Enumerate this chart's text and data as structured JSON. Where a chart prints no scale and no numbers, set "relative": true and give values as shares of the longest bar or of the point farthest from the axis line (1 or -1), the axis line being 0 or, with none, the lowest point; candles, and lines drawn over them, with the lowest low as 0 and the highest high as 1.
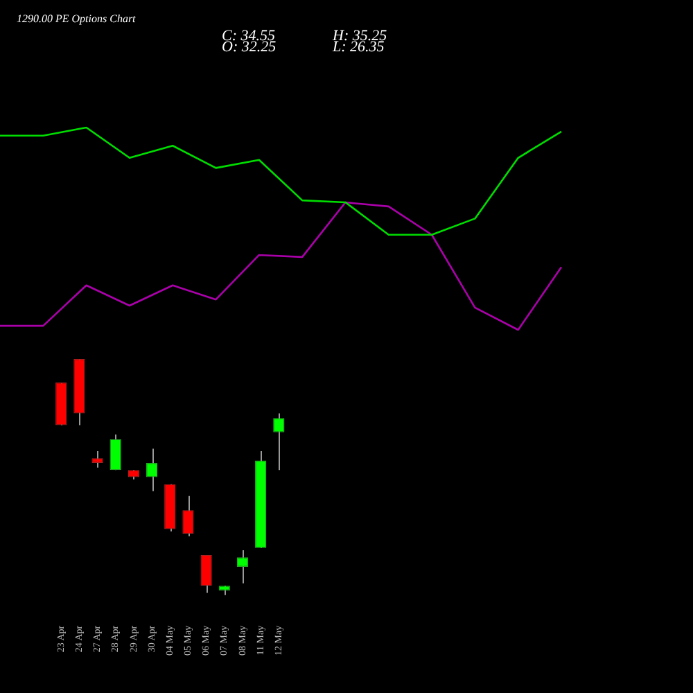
{
  "chart_data": [
    {
      "type": "line",
      "title": "1290.00 PE Options Chart",
      "annotations": [
        "C: 34.55",
        "O: 32.25",
        "H: 35.25",
        "L: 26.35"
      ],
      "relative": true,
      "legend": false,
      "grid": false,
      "tick_labels": false,
      "marker": "none",
      "categories": [
        null,
        null,
        null,
        null,
        null,
        null,
        null,
        null,
        null,
        null,
        null,
        null,
        null,
        null
      ],
      "series": [
        {
          "color": "#00dd00",
          "values": [
            0.96,
            0.96,
            1.0,
            0.85,
            0.91,
            0.8,
            0.84,
            0.64,
            0.63,
            0.47,
            0.47,
            0.55,
            0.85,
            0.98
          ]
        },
        {
          "color": "#aa00aa",
          "values": [
            0.02,
            0.02,
            0.22,
            0.12,
            0.22,
            0.15,
            0.37,
            0.36,
            0.63,
            0.61,
            0.47,
            0.11,
            0.0,
            0.31
          ]
        }
      ]
    },
    {
      "type": "candlestick",
      "relative": true,
      "legend": false,
      "grid": false,
      "tick_labels": "x",
      "categories": [
        "23 Apr",
        "24 Apr",
        "27 Apr",
        "28 Apr",
        "29 Apr",
        "30 Apr",
        "04 May",
        "05 May",
        "06 May",
        "07 May",
        "08 May",
        "11 May",
        "12 May"
      ],
      "ohlc": [
        [
          0.9,
          0.9,
          0.72,
          0.72
        ],
        [
          1.0,
          1.0,
          0.72,
          0.77
        ],
        [
          0.58,
          0.61,
          0.54,
          0.56
        ],
        [
          0.53,
          0.68,
          0.53,
          0.66
        ],
        [
          0.53,
          0.53,
          0.49,
          0.5
        ],
        [
          0.5,
          0.62,
          0.44,
          0.56
        ],
        [
          0.47,
          0.47,
          0.27,
          0.28
        ],
        [
          0.36,
          0.42,
          0.25,
          0.26
        ],
        [
          0.17,
          0.17,
          0.01,
          0.04
        ],
        [
          0.02,
          0.04,
          0.0,
          0.04
        ],
        [
          0.12,
          0.19,
          0.05,
          0.16
        ],
        [
          0.2,
          0.61,
          0.2,
          0.57
        ],
        [
          0.69,
          0.77,
          0.53,
          0.75
        ]
      ]
    }
  ]
}
